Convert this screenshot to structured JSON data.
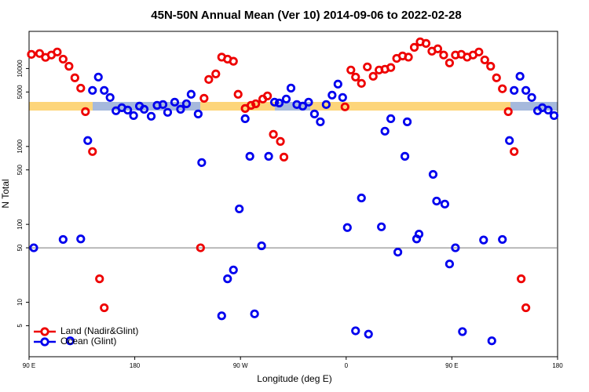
{
  "chart_data": {
    "type": "scatter",
    "title": "45N-50N Annual Mean (Ver 10)   2014-09-06 to 2022-02-28",
    "x_label": "Longitude (deg E)",
    "y_label": "N Total",
    "log_y": true,
    "legend": "lower left",
    "xlim": [
      90,
      540
    ],
    "xticks": [
      {
        "value": 90,
        "label": "90 E"
      },
      180,
      {
        "value": 270,
        "label": "90 W"
      },
      {
        "value": 360,
        "label": "0"
      },
      {
        "value": 450,
        "label": "90 E"
      },
      {
        "value": 540,
        "label": "180"
      }
    ],
    "ylim": [
      2,
      30000
    ],
    "yticks": [
      5,
      10,
      50,
      100,
      500,
      1000,
      5000,
      10000
    ],
    "reference_line": 50,
    "series": [
      {
        "name": "Land (Nadir&Glint)",
        "color": "#ee0000",
        "x": [
          92,
          99,
          104,
          109,
          114,
          119,
          124,
          129,
          134,
          138,
          144,
          150,
          154,
          236,
          239,
          243,
          249,
          254,
          259,
          264,
          268,
          274,
          279,
          283,
          289,
          293,
          298,
          304,
          307,
          359,
          364,
          368,
          373,
          378,
          383,
          388,
          393,
          398,
          403,
          408,
          413,
          418,
          423,
          428,
          433,
          438,
          443,
          448,
          453,
          458,
          463,
          468,
          473,
          478,
          483,
          488,
          493,
          498,
          503,
          509,
          513
        ],
        "values": [
          15200,
          15600,
          13900,
          14900,
          16300,
          13200,
          10700,
          7600,
          5600,
          2800,
          860,
          20,
          8.5,
          50,
          4150,
          7240,
          8530,
          14000,
          13200,
          12400,
          4670,
          3070,
          3370,
          3530,
          4060,
          4450,
          1430,
          1160,
          730,
          3220,
          9570,
          7770,
          6450,
          10500,
          7950,
          9570,
          9790,
          10300,
          13500,
          14500,
          14000,
          18700,
          22000,
          21000,
          16700,
          17900,
          14900,
          11800,
          14900,
          15200,
          14000,
          14900,
          16300,
          12900,
          10700,
          7600,
          5500,
          2800,
          860,
          20,
          8.5
        ]
      },
      {
        "name": "Ocean (Glint)",
        "color": "#0000ee",
        "x": [
          94,
          119,
          125,
          134,
          140,
          144,
          149,
          154,
          159,
          164,
          169,
          174,
          179,
          184,
          188,
          194,
          199,
          204,
          208,
          214,
          219,
          224,
          228,
          234,
          237,
          254,
          259,
          264,
          269,
          274,
          278,
          282,
          288,
          294,
          299,
          303,
          309,
          313,
          318,
          323,
          328,
          333,
          338,
          343,
          348,
          353,
          357,
          361,
          368,
          373,
          379,
          390,
          393,
          398,
          404,
          410,
          412,
          420,
          422,
          434,
          437,
          444,
          448,
          453,
          459,
          477,
          484,
          493,
          499,
          503,
          508,
          513,
          518,
          523,
          527,
          532,
          537
        ],
        "values": [
          50,
          64,
          3.2,
          65,
          1190,
          5240,
          7770,
          5240,
          4250,
          2870,
          3140,
          2930,
          2490,
          3290,
          3000,
          2440,
          3370,
          3450,
          2740,
          3700,
          3000,
          3530,
          4670,
          2610,
          621,
          6.7,
          20,
          26,
          158,
          2270,
          747,
          7.1,
          53,
          747,
          3700,
          3610,
          4060,
          5610,
          3450,
          3290,
          3700,
          2610,
          2070,
          3450,
          4560,
          6310,
          4250,
          91,
          4.3,
          218,
          3.9,
          93,
          1570,
          2270,
          44,
          747,
          2070,
          65,
          75,
          438,
          199,
          182,
          31,
          50,
          4.2,
          63,
          3.2,
          64,
          1190,
          5240,
          7950,
          5240,
          4250,
          2870,
          3140,
          2930,
          2490
        ]
      }
    ]
  }
}
